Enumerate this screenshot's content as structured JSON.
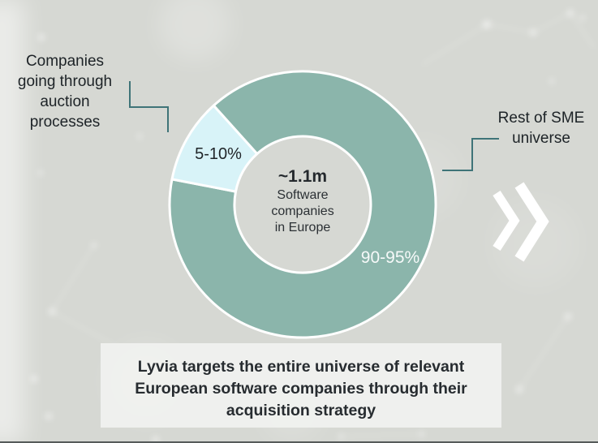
{
  "chart_data": {
    "type": "pie",
    "variant": "donut",
    "title": "",
    "legend_position": "callout-labels",
    "rotation_css_deg": 318,
    "center_label": {
      "headline": "~1.1m",
      "lines": [
        "Software",
        "companies",
        "in Europe"
      ]
    },
    "segments": [
      {
        "name": "Rest of SME universe",
        "value_label": "90-95%",
        "value_range_pct": [
          90,
          95
        ],
        "drawn_pct": 89.7,
        "color": "#8bb5ab",
        "label_color": "#f2f6f4"
      },
      {
        "name": "Companies going through auction processes",
        "value_label": "5-10%",
        "value_range_pct": [
          5,
          10
        ],
        "drawn_pct": 10.3,
        "color": "#d8f3f8",
        "label_color": "#21262a"
      }
    ]
  },
  "callouts": {
    "left": {
      "lines": [
        "Companies",
        "going through",
        "auction",
        "processes"
      ]
    },
    "right": {
      "lines": [
        "Rest of SME",
        "universe"
      ]
    }
  },
  "caption": {
    "lines": [
      "Lyvia targets the entire universe of relevant",
      "European software companies through their",
      "acquisition strategy"
    ]
  },
  "icons": {
    "next": "double-chevron-right-icon"
  },
  "colors": {
    "background": "#d6d8d3",
    "donut_main": "#8bb5ab",
    "donut_secondary": "#d8f3f8",
    "connector": "#3f7478",
    "text_dark": "#20262a",
    "caption_bg": "#f1f2f0",
    "caption_text": "#272c30",
    "chevron": "#ffffff",
    "bottom_bar": "#565b5a"
  }
}
